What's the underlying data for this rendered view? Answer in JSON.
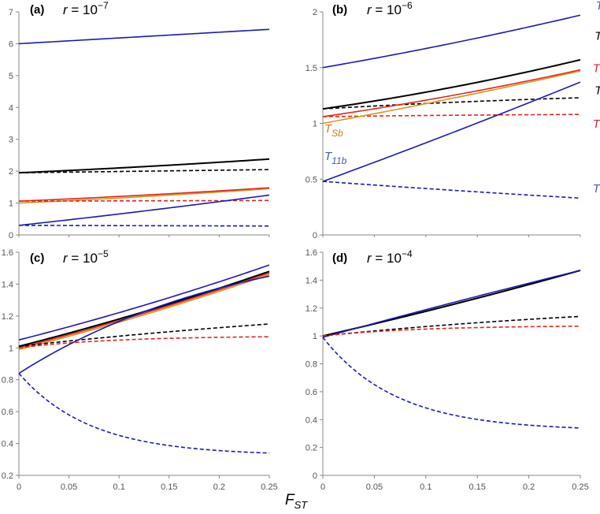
{
  "colors": {
    "blue": "#1a1ab4",
    "black": "#000000",
    "red": "#e0261c",
    "orange": "#d9961c",
    "label_blue": "#3c5fa8",
    "label_red": "#d8261c",
    "label_orange": "#c87822"
  },
  "figure": {
    "xlabel": "F",
    "xlabel_sub": "ST"
  },
  "chart_data": [
    {
      "id": "a",
      "type": "line",
      "panel_label": "(a)",
      "r_text": "r = 10",
      "r_exp": "−7",
      "xlim": [
        0,
        0.25
      ],
      "ylim": [
        0,
        7
      ],
      "xticks": [],
      "yticks": [
        "0",
        "1",
        "2",
        "3",
        "4",
        "5",
        "6",
        "7"
      ],
      "series": [
        {
          "name": "T12",
          "color": "blue",
          "dash": false,
          "start": 6.0,
          "end": 6.45,
          "curve": 0
        },
        {
          "name": "TTb",
          "color": "black",
          "dash": false,
          "start": 1.95,
          "end": 2.38,
          "curve": 0.2
        },
        {
          "name": "TTw",
          "color": "black",
          "dash": true,
          "start": 1.95,
          "end": 2.05,
          "curve": 0
        },
        {
          "name": "TSb",
          "color": "orange",
          "dash": false,
          "start": 1.0,
          "end": 1.45,
          "curve": 0.2
        },
        {
          "name": "T22b",
          "color": "red",
          "dash": false,
          "start": 1.06,
          "end": 1.48,
          "curve": 0.2
        },
        {
          "name": "T22w",
          "color": "red",
          "dash": true,
          "start": 1.06,
          "end": 1.08,
          "curve": 0
        },
        {
          "name": "T11b",
          "color": "blue",
          "dash": false,
          "start": 0.3,
          "end": 1.25,
          "curve": 0.1
        },
        {
          "name": "T11w",
          "color": "blue",
          "dash": true,
          "start": 0.3,
          "end": 0.28,
          "curve": 0
        }
      ]
    },
    {
      "id": "b",
      "type": "line",
      "panel_label": "(b)",
      "r_text": "r = 10",
      "r_exp": "−6",
      "xlim": [
        0,
        0.25
      ],
      "ylim": [
        0,
        2
      ],
      "xticks": [],
      "yticks": [
        "0",
        "0.5",
        "1",
        "1.5",
        "2"
      ],
      "series": [
        {
          "name": "T12",
          "color": "blue",
          "dash": false,
          "start": 1.5,
          "end": 1.97,
          "curve": 0.15
        },
        {
          "name": "TTb",
          "color": "black",
          "dash": false,
          "start": 1.13,
          "end": 1.57,
          "curve": 0.25
        },
        {
          "name": "TTw",
          "color": "black",
          "dash": true,
          "start": 1.13,
          "end": 1.23,
          "curve": -0.3
        },
        {
          "name": "T22b",
          "color": "red",
          "dash": false,
          "start": 1.06,
          "end": 1.48,
          "curve": 0.2
        },
        {
          "name": "T22w",
          "color": "red",
          "dash": true,
          "start": 1.06,
          "end": 1.08,
          "curve": -0.5
        },
        {
          "name": "TSb",
          "color": "orange",
          "dash": false,
          "start": 1.0,
          "end": 1.47,
          "curve": 0.1
        },
        {
          "name": "T11b",
          "color": "blue",
          "dash": false,
          "start": 0.48,
          "end": 1.37,
          "curve": 0.05
        },
        {
          "name": "T11w",
          "color": "blue",
          "dash": true,
          "start": 0.48,
          "end": 0.33,
          "curve": -0.1
        }
      ],
      "annotations": [
        {
          "main": "T",
          "sub": "12",
          "color": "label_blue",
          "x": 0.265,
          "y": 2.02
        },
        {
          "main": "T",
          "sub": "Tb",
          "color": "black",
          "x": 0.264,
          "y": 1.75
        },
        {
          "main": "T",
          "sub": "22b",
          "color": "label_red",
          "x": 0.262,
          "y": 1.46
        },
        {
          "main": "T",
          "sub": "Tw",
          "color": "black",
          "x": 0.264,
          "y": 1.26
        },
        {
          "main": "T",
          "sub": "22w",
          "color": "label_red",
          "x": 0.262,
          "y": 0.96
        },
        {
          "main": "T",
          "sub": "Sb",
          "color": "label_orange",
          "x": 0.0,
          "y": 0.92
        },
        {
          "main": "T",
          "sub": "11b",
          "color": "label_blue",
          "x": 0.0,
          "y": 0.67
        },
        {
          "main": "T",
          "sub": "11w",
          "color": "label_blue",
          "x": 0.262,
          "y": 0.38
        }
      ]
    },
    {
      "id": "c",
      "type": "line",
      "panel_label": "(c)",
      "r_text": "r = 10",
      "r_exp": "−5",
      "xlim": [
        0,
        0.25
      ],
      "ylim": [
        0.2,
        1.6
      ],
      "xticks": [
        "0",
        "0.05",
        "0.1",
        "0.15",
        "0.2",
        "0.25"
      ],
      "yticks": [
        "0.2",
        "0.4",
        "0.6",
        "0.8",
        "1",
        "1.2",
        "1.4",
        "1.6"
      ],
      "series": [
        {
          "name": "T12",
          "color": "blue",
          "dash": false,
          "start": 1.05,
          "end": 1.52,
          "curve": 0.15
        },
        {
          "name": "TSb",
          "color": "orange",
          "dash": false,
          "start": 0.99,
          "end": 1.46,
          "curve": 0.15
        },
        {
          "name": "T22b",
          "color": "red",
          "dash": false,
          "start": 1.0,
          "end": 1.47,
          "curve": 0.15
        },
        {
          "name": "TTb",
          "color": "black",
          "dash": false,
          "start": 1.01,
          "end": 1.48,
          "curve": 0.15
        },
        {
          "name": "TTw",
          "color": "black",
          "dash": true,
          "start": 1.01,
          "end": 1.15,
          "curve": -0.2
        },
        {
          "name": "T22w",
          "color": "red",
          "dash": true,
          "start": 1.0,
          "end": 1.07,
          "curve": -1.2
        },
        {
          "name": "T11b",
          "color": "blue",
          "dash": false,
          "start": 0.84,
          "end": 1.45,
          "curve": -0.5
        },
        {
          "name": "T11w",
          "color": "blue",
          "dash": true,
          "start": 0.84,
          "end": 0.34,
          "curve": -1.6
        }
      ]
    },
    {
      "id": "d",
      "type": "line",
      "panel_label": "(d)",
      "r_text": "r = 10",
      "r_exp": "−4",
      "xlim": [
        0,
        0.25
      ],
      "ylim": [
        0,
        1.6
      ],
      "xticks": [
        "0",
        "0.05",
        "0.1",
        "0.15",
        "0.2",
        "0.25"
      ],
      "yticks": [
        "0",
        "0.2",
        "0.4",
        "0.6",
        "0.8",
        "1",
        "1.2",
        "1.4",
        "1.6"
      ],
      "series": [
        {
          "name": "T12",
          "color": "blue",
          "dash": false,
          "start": 1.0,
          "end": 1.47,
          "curve": 0.1
        },
        {
          "name": "T22b",
          "color": "red",
          "dash": false,
          "start": 1.0,
          "end": 1.47,
          "curve": 0.1
        },
        {
          "name": "TSb",
          "color": "orange",
          "dash": false,
          "start": 1.0,
          "end": 1.47,
          "curve": 0.1
        },
        {
          "name": "TTb",
          "color": "black",
          "dash": false,
          "start": 1.0,
          "end": 1.47,
          "curve": 0.1
        },
        {
          "name": "T11b",
          "color": "blue",
          "dash": false,
          "start": 0.99,
          "end": 1.47,
          "curve": -0.05
        },
        {
          "name": "TTw",
          "color": "black",
          "dash": true,
          "start": 1.0,
          "end": 1.14,
          "curve": -0.3
        },
        {
          "name": "T22w",
          "color": "red",
          "dash": true,
          "start": 1.0,
          "end": 1.07,
          "curve": -1.2
        },
        {
          "name": "T11w",
          "color": "blue",
          "dash": true,
          "start": 0.99,
          "end": 0.34,
          "curve": -1.6
        }
      ]
    }
  ]
}
